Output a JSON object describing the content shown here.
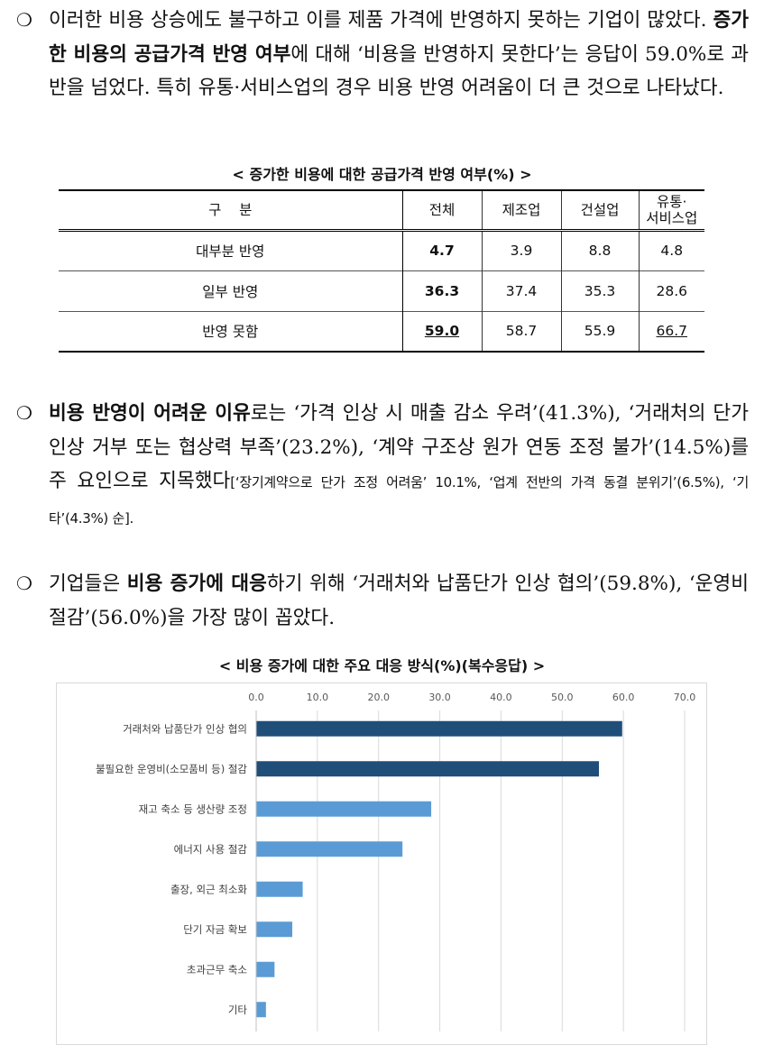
{
  "paragraphs": {
    "p1": {
      "bullet": "❍",
      "t1": "이러한 비용 상승에도 불구하고 이를 제품 가격에 반영하지 못하는 기업이 많았다. ",
      "b1": "증가한 비용의 공급가격 반영 여부",
      "t2": "에 대해 ‘비용을 반영하지 못한다’는 응답이 59.0%로 과반을 넘었다. 특히 유통·서비스업의 경우 비용 반영 어려움이 더 큰 것으로 나타났다."
    },
    "p2": {
      "bullet": "❍",
      "b1": "비용 반영이 어려운 이유",
      "t1": "로는 ‘가격 인상 시 매출 감소 우려’(41.3%), ‘거래처의 단가 인상 거부 또는 협상력 부족’(23.2%), ‘계약 구조상 원가 연동 조정 불가’(14.5%)를 주 요인으로 지목했다",
      "s1": "[‘장기계약으로 단가 조정 어려움’ 10.1%, ‘업계 전반의 가격 동결 분위기’(6.5%), ‘기타’(4.3%) 순]."
    },
    "p3": {
      "bullet": "❍",
      "t1": "기업들은 ",
      "b1": "비용 증가에 대응",
      "t2": "하기 위해 ‘거래처와 납품단가 인상 협의’(59.8%), ‘운영비 절감’(56.0%)을 가장 많이 꼽았다."
    }
  },
  "table": {
    "caption": "< 증가한 비용에 대한 공급가격 반영 여부(%) >",
    "headers": {
      "category": "구    분",
      "total": "전체",
      "manufacturing": "제조업",
      "construction": "건설업",
      "retail_line1": "유통·",
      "retail_line2": "서비스업"
    },
    "rows": [
      {
        "label": "대부분 반영",
        "total": "4.7",
        "manufacturing": "3.9",
        "construction": "8.8",
        "retail": "4.8"
      },
      {
        "label": "일부 반영",
        "total": "36.3",
        "manufacturing": "37.4",
        "construction": "35.3",
        "retail": "28.6"
      },
      {
        "label": "반영 못함",
        "total": "59.0",
        "manufacturing": "58.7",
        "construction": "55.9",
        "retail": "66.7"
      }
    ]
  },
  "chart_caption": "< 비용 증가에 대한 주요 대응 방식(%)(복수응답) >",
  "chart_data": {
    "type": "bar",
    "orientation": "horizontal",
    "title": "< 비용 증가에 대한 주요 대응 방식(%)(복수응답) >",
    "categories": [
      "거래처와 납품단가 인상 협의",
      "불필요한 운영비(소모품비 등) 절감",
      "재고 축소 등 생산량 조정",
      "에너지 사용 절감",
      "출장, 외근 최소화",
      "단기 자금 확보",
      "초과근무 축소",
      "기타"
    ],
    "values": [
      59.8,
      56.0,
      28.6,
      23.9,
      7.6,
      5.9,
      3.0,
      1.6
    ],
    "bar_colors": [
      "#1f4e79",
      "#1f4e79",
      "#5b9bd5",
      "#5b9bd5",
      "#5b9bd5",
      "#5b9bd5",
      "#5b9bd5",
      "#5b9bd5"
    ],
    "xlim": [
      0,
      70
    ],
    "x_ticks": [
      "0.0",
      "10.0",
      "20.0",
      "30.0",
      "40.0",
      "50.0",
      "60.0",
      "70.0"
    ],
    "x_axis_position": "top",
    "grid": true
  }
}
